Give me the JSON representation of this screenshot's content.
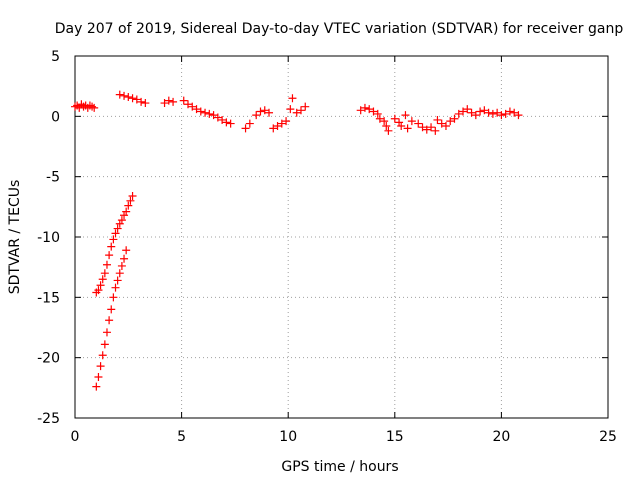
{
  "chart_data": {
    "type": "scatter",
    "title": "Day 207 of 2019, Sidereal Day-to-day VTEC variation (SDTVAR) for receiver ganp",
    "xlabel": "GPS time / hours",
    "ylabel": "SDTVAR / TECUs",
    "xlim": [
      0,
      25
    ],
    "ylim": [
      -25,
      5
    ],
    "xticks": [
      0,
      5,
      10,
      15,
      20,
      25
    ],
    "yticks": [
      5,
      0,
      -5,
      -10,
      -15,
      -20,
      -25
    ],
    "xtick_labels": [
      "0",
      "5",
      "10",
      "15",
      "20",
      "25"
    ],
    "ytick_labels": [
      "5",
      "0",
      "-5",
      "-10",
      "-15",
      "-20",
      "-25"
    ],
    "grid": true,
    "marker": "plus",
    "series": [
      {
        "name": "SDTVAR",
        "color": "#ff0000",
        "points": [
          [
            0.0,
            0.8
          ],
          [
            0.1,
            0.9
          ],
          [
            0.2,
            0.7
          ],
          [
            0.3,
            1.0
          ],
          [
            0.4,
            0.8
          ],
          [
            0.5,
            0.9
          ],
          [
            0.6,
            0.7
          ],
          [
            0.7,
            0.9
          ],
          [
            0.8,
            0.8
          ],
          [
            0.9,
            0.7
          ],
          [
            1.0,
            -14.6
          ],
          [
            1.1,
            -14.4
          ],
          [
            1.2,
            -14.0
          ],
          [
            1.3,
            -13.5
          ],
          [
            1.4,
            -13.0
          ],
          [
            1.5,
            -12.3
          ],
          [
            1.6,
            -11.5
          ],
          [
            1.7,
            -10.8
          ],
          [
            1.8,
            -10.2
          ],
          [
            1.9,
            -9.7
          ],
          [
            2.0,
            -9.3
          ],
          [
            2.1,
            -8.9
          ],
          [
            2.2,
            -8.6
          ],
          [
            2.3,
            -8.2
          ],
          [
            2.4,
            -7.9
          ],
          [
            2.5,
            -7.4
          ],
          [
            2.6,
            -7.0
          ],
          [
            2.7,
            -6.6
          ],
          [
            1.0,
            -22.4
          ],
          [
            1.1,
            -21.6
          ],
          [
            1.2,
            -20.7
          ],
          [
            1.3,
            -19.8
          ],
          [
            1.4,
            -18.9
          ],
          [
            1.5,
            -17.9
          ],
          [
            1.6,
            -16.9
          ],
          [
            1.7,
            -16.0
          ],
          [
            1.8,
            -15.0
          ],
          [
            1.9,
            -14.2
          ],
          [
            2.0,
            -13.6
          ],
          [
            2.1,
            -13.0
          ],
          [
            2.2,
            -12.4
          ],
          [
            2.3,
            -11.8
          ],
          [
            2.4,
            -11.1
          ],
          [
            2.1,
            1.8
          ],
          [
            2.3,
            1.7
          ],
          [
            2.5,
            1.6
          ],
          [
            2.7,
            1.5
          ],
          [
            2.9,
            1.4
          ],
          [
            3.1,
            1.2
          ],
          [
            3.3,
            1.1
          ],
          [
            4.2,
            1.1
          ],
          [
            4.4,
            1.3
          ],
          [
            4.6,
            1.2
          ],
          [
            5.1,
            1.3
          ],
          [
            5.3,
            1.0
          ],
          [
            5.5,
            0.8
          ],
          [
            5.7,
            0.6
          ],
          [
            5.9,
            0.4
          ],
          [
            6.1,
            0.3
          ],
          [
            6.3,
            0.2
          ],
          [
            6.5,
            0.1
          ],
          [
            6.7,
            -0.1
          ],
          [
            6.9,
            -0.3
          ],
          [
            7.1,
            -0.5
          ],
          [
            7.3,
            -0.6
          ],
          [
            8.0,
            -1.0
          ],
          [
            8.2,
            -0.6
          ],
          [
            8.5,
            0.1
          ],
          [
            8.7,
            0.4
          ],
          [
            8.9,
            0.5
          ],
          [
            9.1,
            0.3
          ],
          [
            9.3,
            -1.0
          ],
          [
            9.5,
            -0.8
          ],
          [
            9.7,
            -0.6
          ],
          [
            9.9,
            -0.4
          ],
          [
            10.1,
            0.6
          ],
          [
            10.2,
            1.5
          ],
          [
            10.4,
            0.3
          ],
          [
            10.6,
            0.5
          ],
          [
            10.8,
            0.8
          ],
          [
            13.4,
            0.5
          ],
          [
            13.6,
            0.7
          ],
          [
            13.8,
            0.6
          ],
          [
            14.0,
            0.4
          ],
          [
            14.2,
            0.2
          ],
          [
            14.3,
            -0.2
          ],
          [
            14.5,
            -0.4
          ],
          [
            14.6,
            -0.8
          ],
          [
            14.7,
            -1.2
          ],
          [
            15.0,
            -0.2
          ],
          [
            15.2,
            -0.5
          ],
          [
            15.3,
            -0.8
          ],
          [
            15.5,
            0.1
          ],
          [
            15.6,
            -1.0
          ],
          [
            15.8,
            -0.4
          ],
          [
            16.1,
            -0.6
          ],
          [
            16.3,
            -0.9
          ],
          [
            16.5,
            -1.1
          ],
          [
            16.7,
            -0.9
          ],
          [
            16.9,
            -1.2
          ],
          [
            17.0,
            -0.3
          ],
          [
            17.2,
            -0.6
          ],
          [
            17.4,
            -0.8
          ],
          [
            17.6,
            -0.4
          ],
          [
            17.8,
            -0.2
          ],
          [
            18.0,
            0.2
          ],
          [
            18.2,
            0.4
          ],
          [
            18.4,
            0.6
          ],
          [
            18.6,
            0.3
          ],
          [
            18.8,
            0.1
          ],
          [
            19.0,
            0.4
          ],
          [
            19.2,
            0.5
          ],
          [
            19.4,
            0.3
          ],
          [
            19.6,
            0.2
          ],
          [
            19.8,
            0.3
          ],
          [
            20.0,
            0.1
          ],
          [
            20.2,
            0.2
          ],
          [
            20.4,
            0.4
          ],
          [
            20.6,
            0.3
          ],
          [
            20.8,
            0.1
          ]
        ]
      }
    ]
  }
}
